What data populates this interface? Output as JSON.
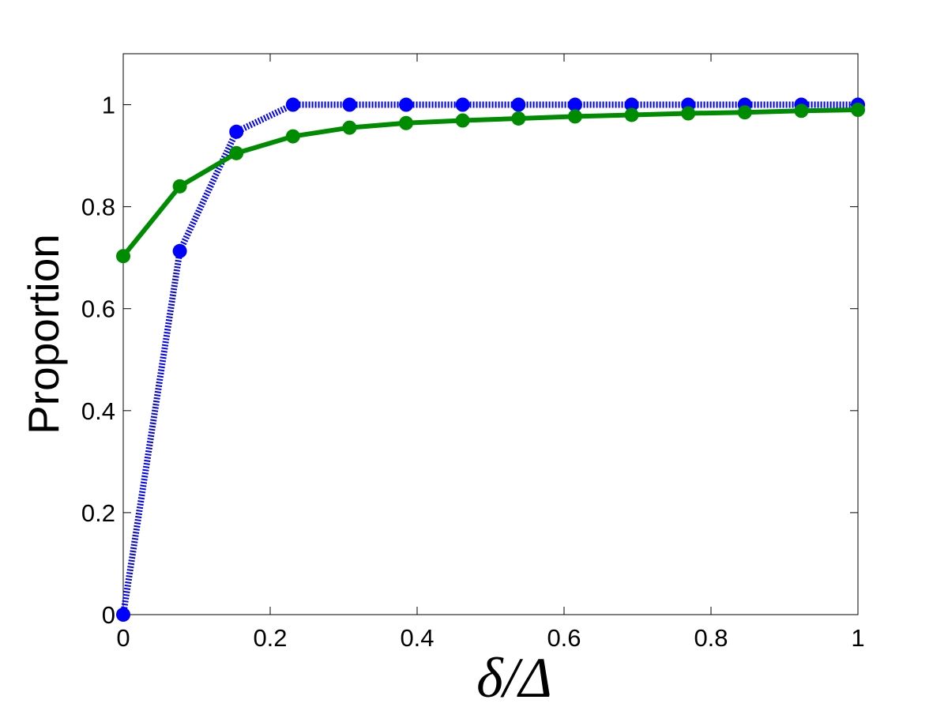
{
  "chart_data": {
    "type": "line",
    "xlabel": "δ/Δ",
    "ylabel": "Proportion",
    "x": [
      0,
      0.077,
      0.154,
      0.231,
      0.308,
      0.385,
      0.462,
      0.538,
      0.615,
      0.692,
      0.769,
      0.846,
      0.923,
      1
    ],
    "series": [
      {
        "color": "#0000ff",
        "line_style": "dotted",
        "values": [
          0,
          0.713,
          0.947,
          1,
          1,
          1,
          1,
          1,
          1,
          1,
          1,
          1,
          1,
          1
        ]
      },
      {
        "color": "#008c00",
        "line_style": "solid",
        "values": [
          0.703,
          0.84,
          0.905,
          0.938,
          0.955,
          0.964,
          0.969,
          0.973,
          0.977,
          0.98,
          0.983,
          0.985,
          0.988,
          0.99
        ]
      }
    ],
    "xlim": [
      0,
      1
    ],
    "ylim": [
      0,
      1.1
    ],
    "xticks": [
      0,
      0.2,
      0.4,
      0.6,
      0.8,
      1
    ],
    "yticks": [
      0,
      0.2,
      0.4,
      0.6,
      0.8,
      1
    ],
    "grid": false
  }
}
